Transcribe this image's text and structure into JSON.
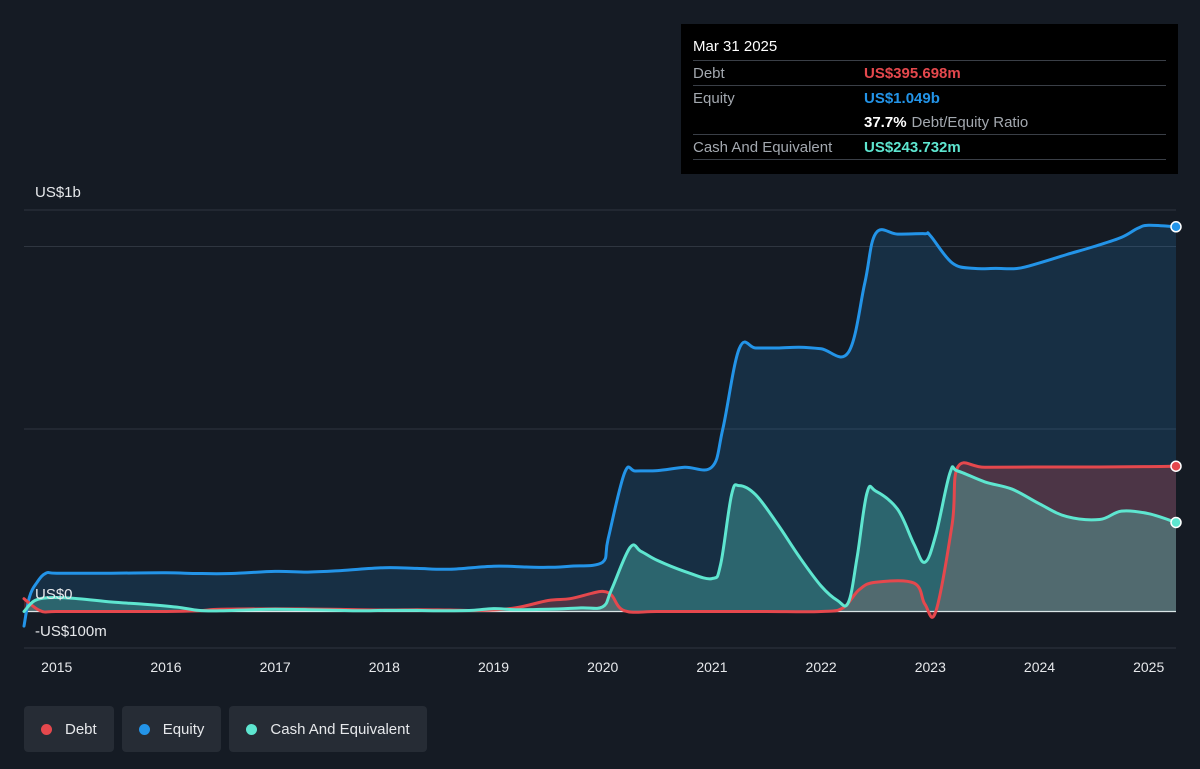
{
  "tooltip": {
    "date": "Mar 31 2025",
    "debt_label": "Debt",
    "debt_value": "US$395.698m",
    "equity_label": "Equity",
    "equity_value": "US$1.049b",
    "ratio_value": "37.7%",
    "ratio_label": "Debt/Equity Ratio",
    "cash_label": "Cash And Equivalent",
    "cash_value": "US$243.732m"
  },
  "legend": [
    {
      "label": "Debt",
      "color": "#e5484d"
    },
    {
      "label": "Equity",
      "color": "#2394e8"
    },
    {
      "label": "Cash And Equivalent",
      "color": "#5ee6d0"
    }
  ],
  "colors": {
    "debt": "#e5484d",
    "equity": "#2394e8",
    "cash": "#5ee6d0",
    "background": "#151b24",
    "tooltip_bg": "#000000"
  },
  "chart_data": {
    "type": "area",
    "title": "",
    "xlabel": "",
    "ylabel": "",
    "y_tick_labels": [
      {
        "value": 1100,
        "label": "US$1b"
      },
      {
        "value": 0,
        "label": "US$0"
      },
      {
        "value": -100,
        "label": "-US$100m"
      }
    ],
    "ylim": [
      -100,
      1100
    ],
    "xlim": [
      2014.7,
      2025.25
    ],
    "x_tick_labels": [
      "2015",
      "2016",
      "2017",
      "2018",
      "2019",
      "2020",
      "2021",
      "2022",
      "2023",
      "2024",
      "2025"
    ],
    "grid": "horizontal",
    "legend_position": "bottom-left",
    "series": [
      {
        "name": "Debt",
        "points": [
          [
            2014.7,
            35
          ],
          [
            2014.85,
            2
          ],
          [
            2015.0,
            0
          ],
          [
            2015.5,
            0
          ],
          [
            2016.0,
            0
          ],
          [
            2016.3,
            2
          ],
          [
            2016.5,
            6
          ],
          [
            2017.0,
            7
          ],
          [
            2017.5,
            6
          ],
          [
            2018.0,
            4
          ],
          [
            2018.3,
            5
          ],
          [
            2018.6,
            4
          ],
          [
            2018.9,
            3
          ],
          [
            2019.2,
            10
          ],
          [
            2019.5,
            30
          ],
          [
            2019.7,
            35
          ],
          [
            2019.9,
            50
          ],
          [
            2020.0,
            55
          ],
          [
            2020.08,
            45
          ],
          [
            2020.2,
            2
          ],
          [
            2020.5,
            0
          ],
          [
            2021.0,
            0
          ],
          [
            2021.5,
            0
          ],
          [
            2022.0,
            0
          ],
          [
            2022.2,
            10
          ],
          [
            2022.35,
            60
          ],
          [
            2022.5,
            80
          ],
          [
            2022.85,
            78
          ],
          [
            2022.95,
            20
          ],
          [
            2023.05,
            0
          ],
          [
            2023.2,
            240
          ],
          [
            2023.25,
            395
          ],
          [
            2023.5,
            395
          ],
          [
            2024.0,
            396
          ],
          [
            2024.5,
            396
          ],
          [
            2025.0,
            397
          ],
          [
            2025.25,
            398
          ]
        ]
      },
      {
        "name": "Equity",
        "points": [
          [
            2014.7,
            -40
          ],
          [
            2014.75,
            40
          ],
          [
            2014.82,
            80
          ],
          [
            2014.9,
            105
          ],
          [
            2015.0,
            105
          ],
          [
            2015.5,
            105
          ],
          [
            2016.0,
            106
          ],
          [
            2016.3,
            104
          ],
          [
            2016.6,
            104
          ],
          [
            2017.0,
            110
          ],
          [
            2017.3,
            108
          ],
          [
            2017.6,
            112
          ],
          [
            2018.0,
            120
          ],
          [
            2018.3,
            118
          ],
          [
            2018.6,
            116
          ],
          [
            2019.0,
            124
          ],
          [
            2019.3,
            122
          ],
          [
            2019.5,
            121
          ],
          [
            2019.7,
            124
          ],
          [
            2020.0,
            135
          ],
          [
            2020.05,
            200
          ],
          [
            2020.2,
            380
          ],
          [
            2020.3,
            385
          ],
          [
            2020.5,
            386
          ],
          [
            2020.75,
            395
          ],
          [
            2021.0,
            396
          ],
          [
            2021.1,
            500
          ],
          [
            2021.25,
            720
          ],
          [
            2021.4,
            722
          ],
          [
            2021.6,
            722
          ],
          [
            2021.8,
            724
          ],
          [
            2022.0,
            720
          ],
          [
            2022.25,
            710
          ],
          [
            2022.4,
            900
          ],
          [
            2022.5,
            1036
          ],
          [
            2022.7,
            1034
          ],
          [
            2022.95,
            1035
          ],
          [
            2023.0,
            1030
          ],
          [
            2023.2,
            955
          ],
          [
            2023.4,
            940
          ],
          [
            2023.6,
            940
          ],
          [
            2023.8,
            940
          ],
          [
            2024.0,
            955
          ],
          [
            2024.25,
            978
          ],
          [
            2024.5,
            1000
          ],
          [
            2024.75,
            1025
          ],
          [
            2024.9,
            1050
          ],
          [
            2025.0,
            1058
          ],
          [
            2025.25,
            1054
          ]
        ]
      },
      {
        "name": "Cash And Equivalent",
        "points": [
          [
            2014.7,
            0
          ],
          [
            2014.8,
            30
          ],
          [
            2014.95,
            38
          ],
          [
            2015.2,
            35
          ],
          [
            2015.5,
            26
          ],
          [
            2015.8,
            20
          ],
          [
            2016.1,
            12
          ],
          [
            2016.3,
            3
          ],
          [
            2016.5,
            2
          ],
          [
            2016.8,
            5
          ],
          [
            2017.0,
            6
          ],
          [
            2017.3,
            5
          ],
          [
            2017.6,
            3
          ],
          [
            2017.8,
            2
          ],
          [
            2018.0,
            3
          ],
          [
            2018.3,
            3
          ],
          [
            2018.5,
            2
          ],
          [
            2018.8,
            3
          ],
          [
            2019.0,
            8
          ],
          [
            2019.2,
            5
          ],
          [
            2019.5,
            6
          ],
          [
            2019.8,
            10
          ],
          [
            2020.0,
            13
          ],
          [
            2020.08,
            60
          ],
          [
            2020.25,
            175
          ],
          [
            2020.35,
            165
          ],
          [
            2020.5,
            140
          ],
          [
            2020.75,
            110
          ],
          [
            2021.0,
            90
          ],
          [
            2021.08,
            130
          ],
          [
            2021.18,
            320
          ],
          [
            2021.25,
            345
          ],
          [
            2021.4,
            320
          ],
          [
            2021.6,
            240
          ],
          [
            2021.8,
            150
          ],
          [
            2022.0,
            70
          ],
          [
            2022.15,
            30
          ],
          [
            2022.25,
            25
          ],
          [
            2022.33,
            150
          ],
          [
            2022.42,
            325
          ],
          [
            2022.5,
            330
          ],
          [
            2022.7,
            280
          ],
          [
            2022.85,
            185
          ],
          [
            2022.95,
            135
          ],
          [
            2023.05,
            210
          ],
          [
            2023.18,
            380
          ],
          [
            2023.25,
            385
          ],
          [
            2023.5,
            355
          ],
          [
            2023.75,
            335
          ],
          [
            2024.0,
            295
          ],
          [
            2024.25,
            260
          ],
          [
            2024.55,
            252
          ],
          [
            2024.75,
            275
          ],
          [
            2025.0,
            268
          ],
          [
            2025.25,
            244
          ]
        ]
      }
    ]
  }
}
